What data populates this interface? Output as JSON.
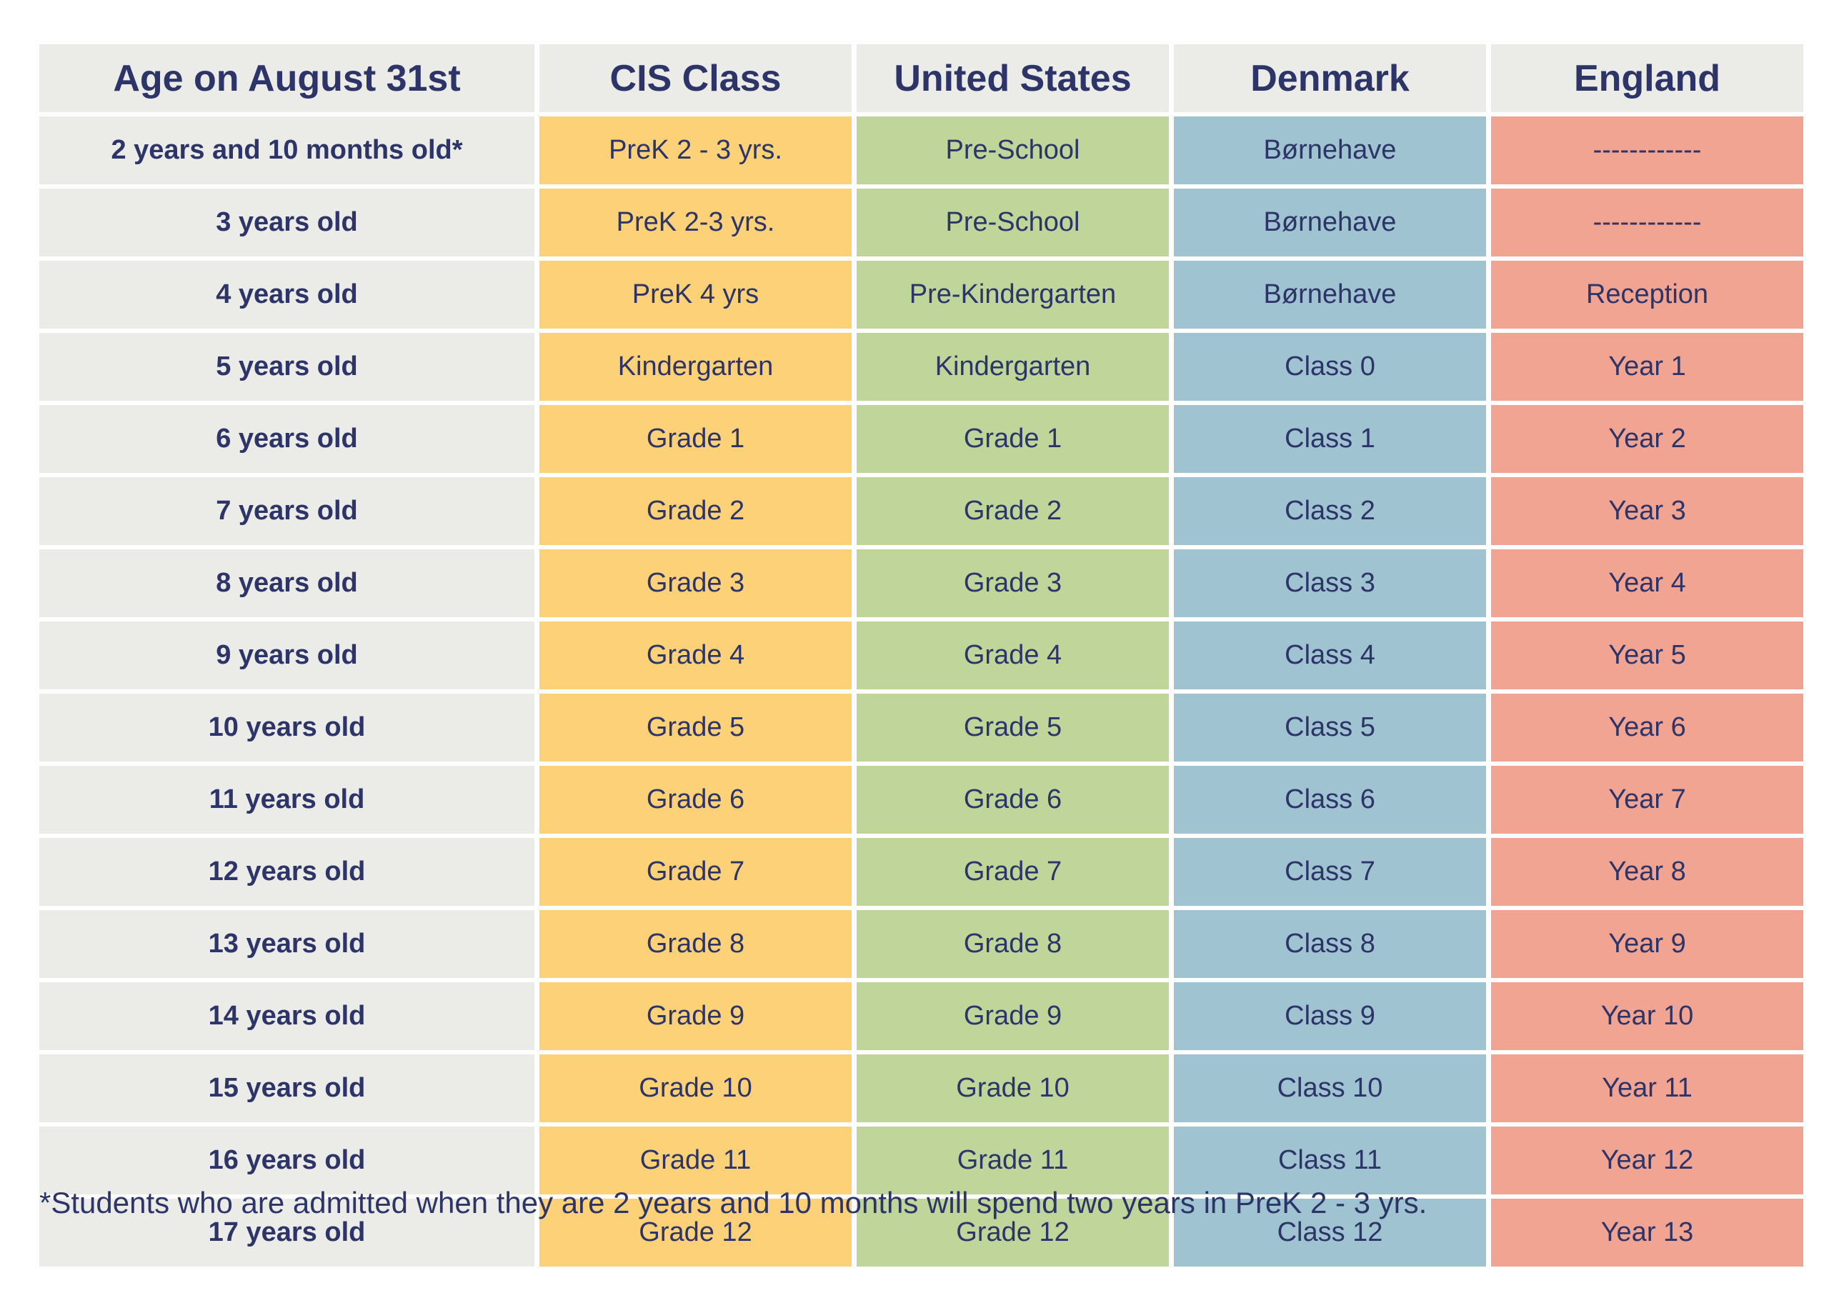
{
  "colors": {
    "text": "#2c3468",
    "age_column": "#ebebe8",
    "cis_column": "#fdd177",
    "us_column": "#bfd599",
    "denmark_column": "#9fc3d0",
    "england_column": "#f1a491"
  },
  "table": {
    "columns": [
      {
        "key": "age",
        "label": "Age on August 31st",
        "color_key": "age_column"
      },
      {
        "key": "cis",
        "label": "CIS Class",
        "color_key": "cis_column"
      },
      {
        "key": "us",
        "label": "United States",
        "color_key": "us_column"
      },
      {
        "key": "dk",
        "label": "Denmark",
        "color_key": "denmark_column"
      },
      {
        "key": "en",
        "label": "England",
        "color_key": "england_column"
      }
    ],
    "rows": [
      {
        "age": "2 years and 10 months old*",
        "cis": "PreK 2 - 3 yrs.",
        "us": "Pre-School",
        "dk": "Børnehave",
        "en": "------------"
      },
      {
        "age": "3 years old",
        "cis": "PreK 2-3 yrs.",
        "us": "Pre-School",
        "dk": "Børnehave",
        "en": "------------"
      },
      {
        "age": "4 years old",
        "cis": "PreK 4 yrs",
        "us": "Pre-Kindergarten",
        "dk": "Børnehave",
        "en": "Reception"
      },
      {
        "age": "5 years old",
        "cis": "Kindergarten",
        "us": "Kindergarten",
        "dk": "Class 0",
        "en": "Year 1"
      },
      {
        "age": "6 years old",
        "cis": "Grade 1",
        "us": "Grade 1",
        "dk": "Class 1",
        "en": "Year 2"
      },
      {
        "age": "7 years old",
        "cis": "Grade 2",
        "us": "Grade 2",
        "dk": "Class 2",
        "en": "Year 3"
      },
      {
        "age": "8 years old",
        "cis": "Grade 3",
        "us": "Grade 3",
        "dk": "Class 3",
        "en": "Year 4"
      },
      {
        "age": "9 years old",
        "cis": "Grade 4",
        "us": "Grade 4",
        "dk": "Class 4",
        "en": "Year 5"
      },
      {
        "age": "10 years old",
        "cis": "Grade 5",
        "us": "Grade 5",
        "dk": "Class 5",
        "en": "Year 6"
      },
      {
        "age": "11 years old",
        "cis": "Grade 6",
        "us": "Grade 6",
        "dk": "Class 6",
        "en": "Year 7"
      },
      {
        "age": "12 years old",
        "cis": "Grade 7",
        "us": "Grade 7",
        "dk": "Class 7",
        "en": "Year 8"
      },
      {
        "age": "13 years old",
        "cis": "Grade 8",
        "us": "Grade 8",
        "dk": "Class 8",
        "en": "Year 9"
      },
      {
        "age": "14 years old",
        "cis": "Grade 9",
        "us": "Grade 9",
        "dk": "Class 9",
        "en": "Year 10"
      },
      {
        "age": "15 years old",
        "cis": "Grade 10",
        "us": "Grade 10",
        "dk": "Class 10",
        "en": "Year 11"
      },
      {
        "age": "16 years old",
        "cis": "Grade 11",
        "us": "Grade 11",
        "dk": "Class 11",
        "en": "Year 12"
      },
      {
        "age": "17 years old",
        "cis": "Grade 12",
        "us": "Grade 12",
        "dk": "Class 12",
        "en": "Year 13"
      }
    ]
  },
  "footnote": "*Students who are admitted when they are 2 years and 10 months will spend two years in PreK 2 - 3 yrs."
}
